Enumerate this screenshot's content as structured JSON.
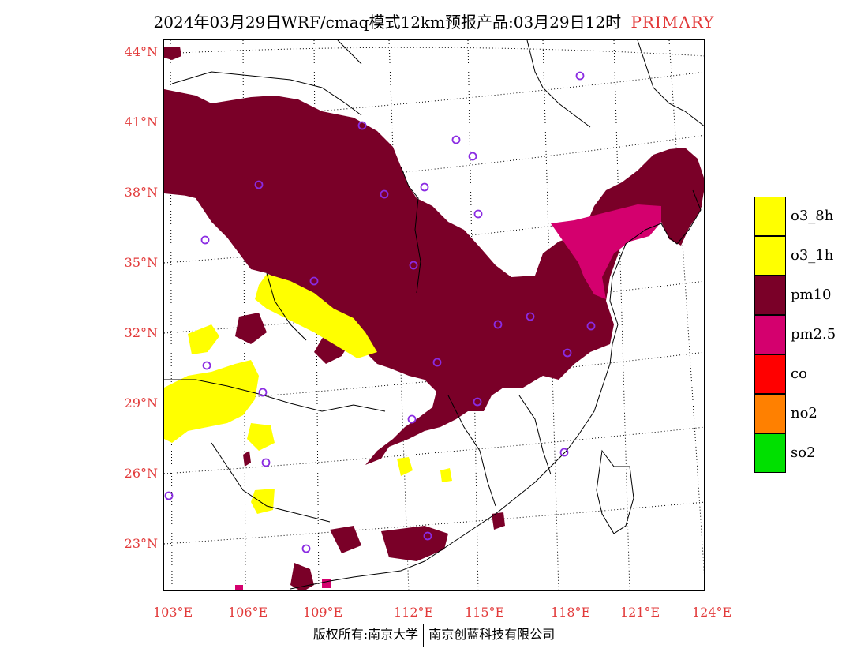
{
  "title": {
    "main": "2024年03月29日WRF/cmaq模式12km预报产品:03月29日12时",
    "mode": "PRIMARY"
  },
  "map": {
    "lat_labels": [
      "44°N",
      "41°N",
      "38°N",
      "35°N",
      "32°N",
      "29°N",
      "26°N",
      "23°N"
    ],
    "lon_labels": [
      "103°E",
      "106°E",
      "109°E",
      "112°E",
      "115°E",
      "118°E",
      "121°E",
      "124°E"
    ]
  },
  "legend": {
    "items": [
      {
        "label": "o3_8h",
        "color": "#ffff00"
      },
      {
        "label": "o3_1h",
        "color": "#ffff00"
      },
      {
        "label": "pm10",
        "color": "#7a0028"
      },
      {
        "label": "pm2.5",
        "color": "#d4006e"
      },
      {
        "label": "co",
        "color": "#ff0000"
      },
      {
        "label": "no2",
        "color": "#ff8000"
      },
      {
        "label": "so2",
        "color": "#00e000"
      }
    ]
  },
  "footer": {
    "left": "版权所有:南京大学",
    "right": "南京创蓝科技有限公司"
  },
  "colors": {
    "pm10": "#7a0028",
    "pm25": "#d4006e",
    "o3": "#ffff00",
    "label_red": "#e23a3a",
    "station": "#8a2be2"
  }
}
